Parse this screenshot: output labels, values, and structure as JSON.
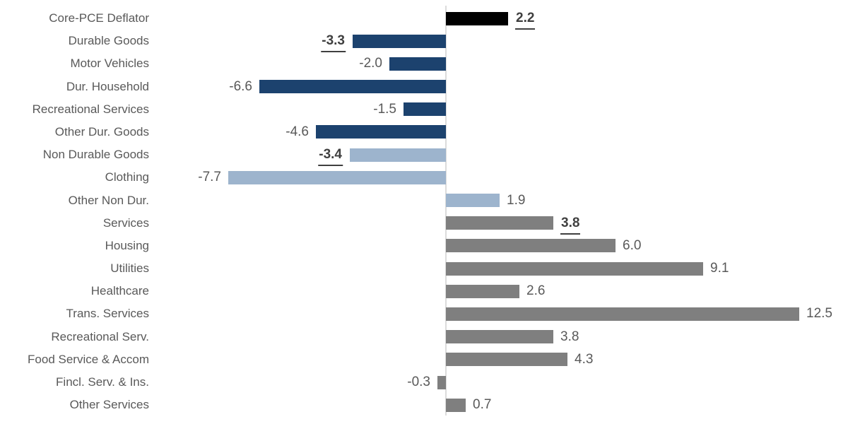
{
  "chart_data": {
    "type": "bar",
    "orientation": "horizontal",
    "title": "",
    "xlabel": "",
    "ylabel": "",
    "xlim": [
      -10.5,
      14.2
    ],
    "grid": false,
    "legend": "none",
    "value_format": "one-decimal",
    "categories": [
      "Core-PCE Deflator",
      "Durable Goods",
      "Motor Vehicles",
      "Dur. Household",
      "Recreational Services",
      "Other Dur. Goods",
      "Non Durable Goods",
      "Clothing",
      "Other Non Dur.",
      "Services",
      "Housing",
      "Utilities",
      "Healthcare",
      "Trans. Services",
      "Recreational Serv.",
      "Food Service & Accom",
      "Fincl. Serv. & Ins.",
      "Other Services"
    ],
    "values": [
      2.2,
      -3.3,
      -2.0,
      -6.6,
      -1.5,
      -4.6,
      -3.4,
      -7.7,
      1.9,
      3.8,
      6.0,
      9.1,
      2.6,
      12.5,
      3.8,
      4.3,
      -0.3,
      0.7
    ],
    "rows": [
      {
        "label": "Core-PCE Deflator",
        "value": 2.2,
        "display": "2.2",
        "group": "core",
        "emphasized": true
      },
      {
        "label": "Durable Goods",
        "value": -3.3,
        "display": "-3.3",
        "group": "durable",
        "emphasized": true
      },
      {
        "label": "Motor Vehicles",
        "value": -2.0,
        "display": "-2.0",
        "group": "durable",
        "emphasized": false
      },
      {
        "label": "Dur. Household",
        "value": -6.6,
        "display": "-6.6",
        "group": "durable",
        "emphasized": false
      },
      {
        "label": "Recreational Services",
        "value": -1.5,
        "display": "-1.5",
        "group": "durable",
        "emphasized": false
      },
      {
        "label": "Other Dur. Goods",
        "value": -4.6,
        "display": "-4.6",
        "group": "durable",
        "emphasized": false
      },
      {
        "label": "Non Durable Goods",
        "value": -3.4,
        "display": "-3.4",
        "group": "nondurable",
        "emphasized": true
      },
      {
        "label": "Clothing",
        "value": -7.7,
        "display": "-7.7",
        "group": "nondurable",
        "emphasized": false
      },
      {
        "label": "Other Non Dur.",
        "value": 1.9,
        "display": "1.9",
        "group": "nondurable",
        "emphasized": false
      },
      {
        "label": "Services",
        "value": 3.8,
        "display": "3.8",
        "group": "services",
        "emphasized": true
      },
      {
        "label": "Housing",
        "value": 6.0,
        "display": "6.0",
        "group": "services",
        "emphasized": false
      },
      {
        "label": "Utilities",
        "value": 9.1,
        "display": "9.1",
        "group": "services",
        "emphasized": false
      },
      {
        "label": "Healthcare",
        "value": 2.6,
        "display": "2.6",
        "group": "services",
        "emphasized": false
      },
      {
        "label": "Trans. Services",
        "value": 12.5,
        "display": "12.5",
        "group": "services",
        "emphasized": false
      },
      {
        "label": "Recreational Serv.",
        "value": 3.8,
        "display": "3.8",
        "group": "services",
        "emphasized": false
      },
      {
        "label": "Food Service & Accom",
        "value": 4.3,
        "display": "4.3",
        "group": "services",
        "emphasized": false
      },
      {
        "label": "Fincl. Serv. & Ins.",
        "value": -0.3,
        "display": "-0.3",
        "group": "services",
        "emphasized": false
      },
      {
        "label": "Other Services",
        "value": 0.7,
        "display": "0.7",
        "group": "services",
        "emphasized": false
      }
    ],
    "group_colors": {
      "core": "#000000",
      "durable": "#1c426e",
      "nondurable": "#9db4cd",
      "services": "#7f7f7f"
    }
  },
  "colors": {
    "background": "#ffffff",
    "axis_line": "#dcdcdc",
    "category_label": "#595959",
    "value_label": "#595959",
    "value_label_emphasized": "#3f3f3f"
  }
}
